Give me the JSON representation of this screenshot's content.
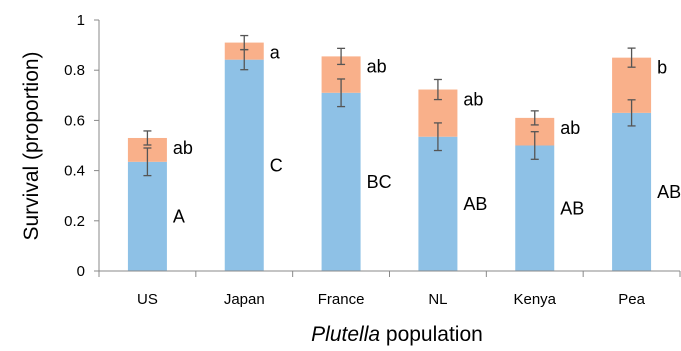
{
  "chart_data": {
    "type": "bar",
    "stacked": true,
    "title": "",
    "ylabel": "Survival (proportion)",
    "xlabel_italic": "Plutella",
    "xlabel_rest": " population",
    "ylim": [
      0,
      1
    ],
    "yticks": [
      0,
      0.2,
      0.4,
      0.6,
      0.8,
      1
    ],
    "ytick_labels": [
      "0",
      "0.2",
      "0.4",
      "0.6",
      "0.8",
      "1"
    ],
    "grid": false,
    "categories": [
      "US",
      "Japan",
      "France",
      "NL",
      "Kenya",
      "Pea"
    ],
    "series": [
      {
        "color": "#8EC1E6",
        "values": [
          0.435,
          0.842,
          0.71,
          0.535,
          0.5,
          0.63
        ],
        "err": [
          0.055,
          0.04,
          0.055,
          0.055,
          0.055,
          0.052
        ],
        "letters": [
          "A",
          "C",
          "BC",
          "AB",
          "AB",
          "AB"
        ]
      },
      {
        "color": "#F9B08A",
        "values": [
          0.095,
          0.068,
          0.145,
          0.188,
          0.11,
          0.22
        ],
        "err": [
          0.028,
          0.028,
          0.032,
          0.04,
          0.028,
          0.038
        ],
        "letters": [
          "ab",
          "a",
          "ab",
          "ab",
          "ab",
          "b"
        ]
      }
    ]
  }
}
